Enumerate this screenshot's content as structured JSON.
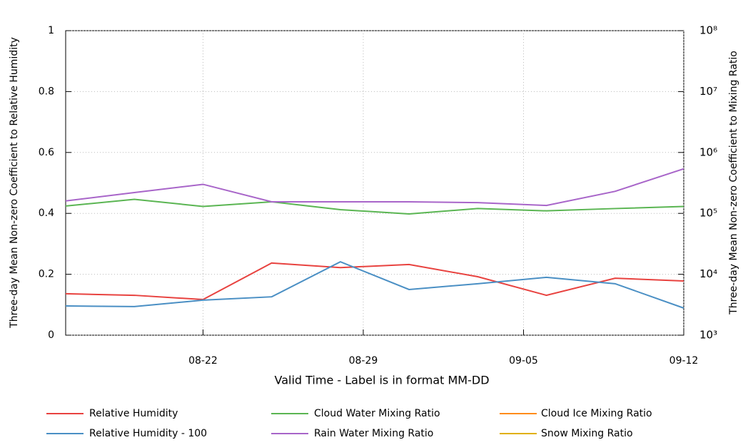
{
  "chart_data": {
    "type": "line",
    "x": [
      "08-16",
      "08-19",
      "08-22",
      "08-25",
      "08-28",
      "08-31",
      "09-03",
      "09-06",
      "09-09",
      "09-12"
    ],
    "xlim": [
      "08-16",
      "09-12"
    ],
    "xticks": [
      "08-22",
      "08-29",
      "09-05",
      "09-12"
    ],
    "xlabel": "Valid Time - Label is in format MM-DD",
    "ylabel": "Three-day Mean Non-zero Coefficient to Relative Humidity",
    "y2label": "Three-day Mean Non-zero Coefficient to Mixing Ratio",
    "ylim": [
      0,
      1
    ],
    "yticks": [
      0,
      0.2,
      0.4,
      0.6,
      0.8,
      1
    ],
    "y2lim": [
      1000,
      100000000
    ],
    "y2_log": true,
    "y2ticks": [
      {
        "value": 1000,
        "label": "10³"
      },
      {
        "value": 10000,
        "label": "10⁴"
      },
      {
        "value": 100000,
        "label": "10⁵"
      },
      {
        "value": 1000000,
        "label": "10⁶"
      },
      {
        "value": 10000000,
        "label": "10⁷"
      },
      {
        "value": 100000000,
        "label": "10⁸"
      }
    ],
    "grid": true,
    "legend": "bottom",
    "series": [
      {
        "name": "Relative Humidity",
        "color": "#e8423f",
        "values": [
          0.136,
          0.131,
          0.117,
          0.237,
          0.222,
          0.232,
          0.192,
          0.131,
          0.187,
          0.178
        ]
      },
      {
        "name": "Relative Humidity - 100",
        "color": "#4a8fc4",
        "values": [
          0.096,
          0.094,
          0.115,
          0.126,
          0.241,
          0.15,
          0.169,
          0.19,
          0.169,
          0.089
        ]
      },
      {
        "name": "Cloud Water Mixing Ratio",
        "color": "#5ab552",
        "axis": "y2",
        "values": [
          132000,
          170000,
          130000,
          155000,
          115000,
          98000,
          120000,
          110000,
          120000,
          130000
        ]
      },
      {
        "name": "Rain Water Mixing Ratio",
        "color": "#a865c9",
        "axis": "y2",
        "values": [
          160000,
          220000,
          300000,
          155000,
          155000,
          155000,
          150000,
          135000,
          230000,
          540000
        ]
      },
      {
        "name": "Cloud Ice Mixing Ratio",
        "color": "#ff8c1a",
        "axis": "y2",
        "values": [
          null,
          null,
          null,
          null,
          null,
          null,
          null,
          null,
          null,
          null
        ]
      },
      {
        "name": "Snow Mixing Ratio",
        "color": "#e0b000",
        "axis": "y2",
        "values": [
          null,
          null,
          null,
          null,
          null,
          null,
          null,
          null,
          null,
          null
        ]
      }
    ]
  }
}
